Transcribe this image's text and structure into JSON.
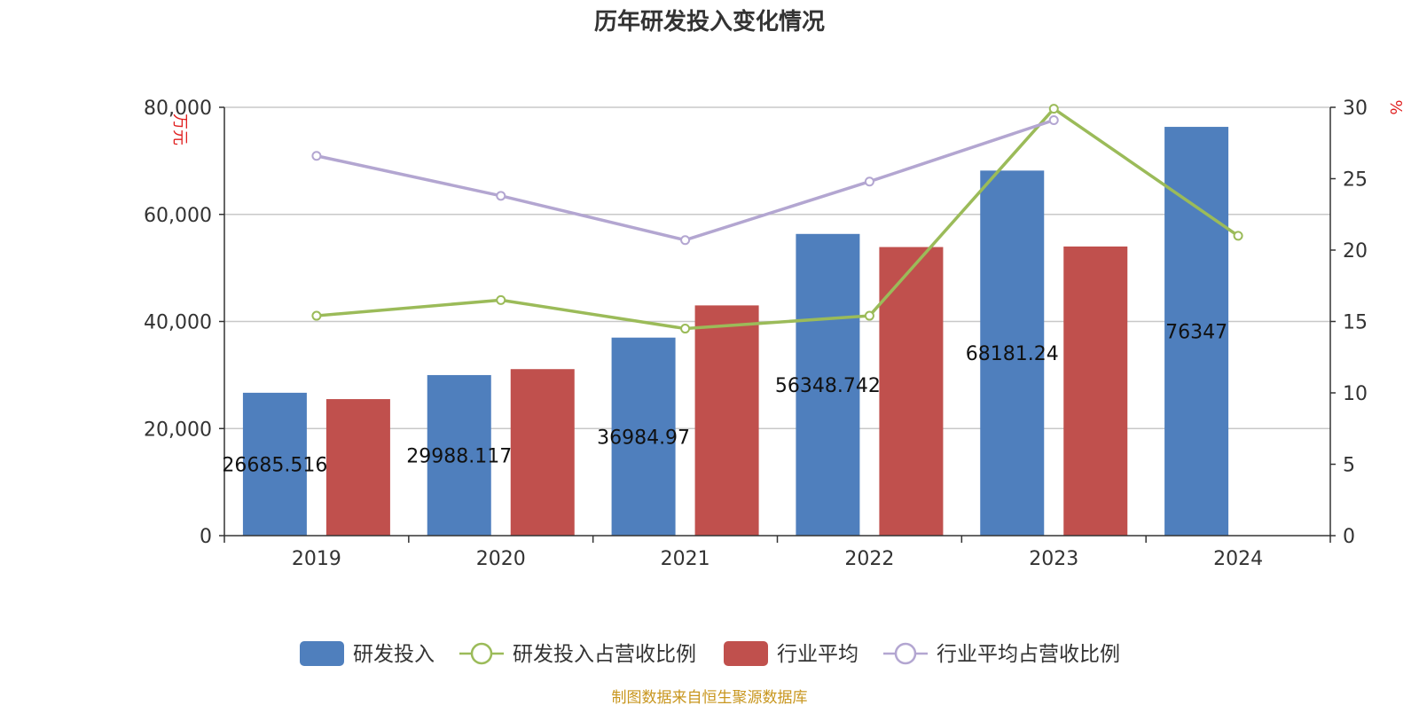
{
  "chart_data": {
    "type": "bar",
    "title": "历年研发投入变化情况",
    "categories": [
      "2019",
      "2020",
      "2021",
      "2022",
      "2023",
      "2024"
    ],
    "y_left": {
      "unit": "万元",
      "ticks": [
        "0",
        "20,000",
        "40,000",
        "60,000",
        "80,000"
      ],
      "ylim": [
        0,
        80000
      ]
    },
    "y_right": {
      "unit": "%",
      "ticks": [
        "0",
        "5",
        "10",
        "15",
        "20",
        "25",
        "30"
      ],
      "ylim": [
        0,
        30
      ]
    },
    "series": [
      {
        "name": "研发投入",
        "type": "bar",
        "axis": "left",
        "color": "#4F7FBD",
        "values": [
          26685.516,
          29988.117,
          36984.97,
          56348.742,
          68181.24,
          76347
        ],
        "labels": [
          "26685.516",
          "29988.117",
          "36984.97",
          "56348.742",
          "68181.24",
          "76347"
        ]
      },
      {
        "name": "研发投入占营收比例",
        "type": "line",
        "axis": "right",
        "color": "#9BBB59",
        "values": [
          15.4,
          16.5,
          14.5,
          15.4,
          29.9,
          21.0
        ]
      },
      {
        "name": "行业平均",
        "type": "bar",
        "axis": "left",
        "color": "#C0504D",
        "values": [
          25500,
          31100,
          43000,
          53900,
          54000,
          null
        ]
      },
      {
        "name": "行业平均占营收比例",
        "type": "line",
        "axis": "right",
        "color": "#B3A6D1",
        "values": [
          26.6,
          23.8,
          20.7,
          24.8,
          29.1,
          null
        ]
      }
    ],
    "grid": true,
    "legend_position": "bottom"
  },
  "source_note": "制图数据来自恒生聚源数据库"
}
